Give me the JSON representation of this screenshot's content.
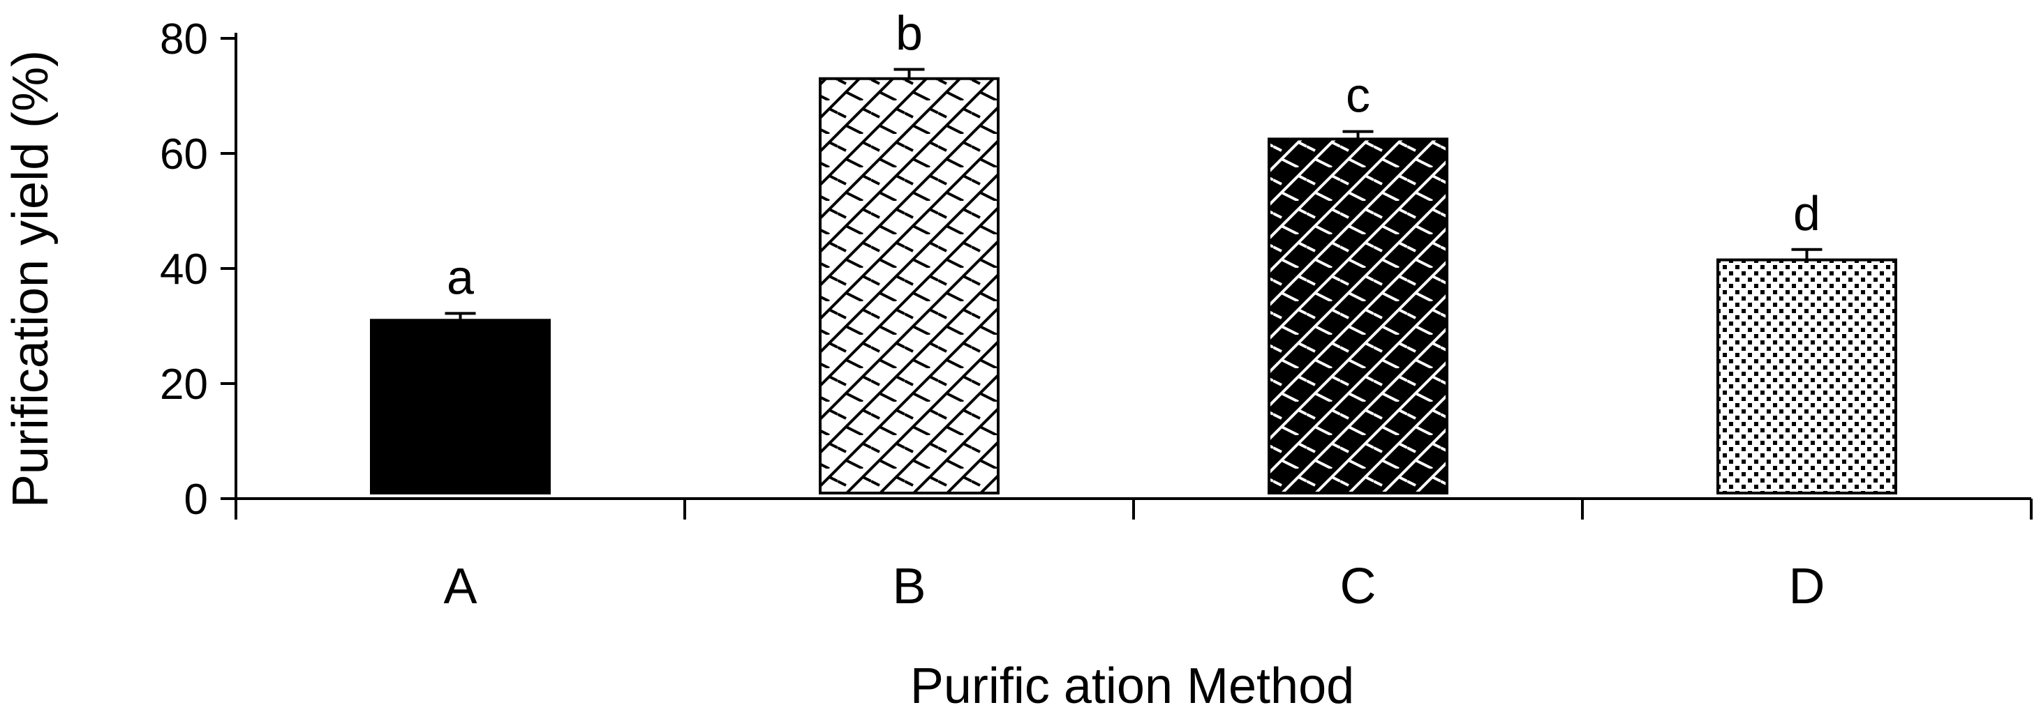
{
  "chart_data": {
    "type": "bar",
    "title": "",
    "xlabel": "Purific ation Method",
    "ylabel": "Purification yield (%)",
    "categories": [
      "A",
      "B",
      "C",
      "D"
    ],
    "values": [
      31,
      73,
      62.5,
      41.5
    ],
    "error": [
      1.2,
      1.6,
      1.3,
      1.8
    ],
    "significance_labels": [
      "a",
      "b",
      "c",
      "d"
    ],
    "ylim": [
      0,
      80
    ],
    "yticks": [
      "0",
      "20",
      "40",
      "60",
      "80"
    ],
    "grid": false,
    "legend": "none",
    "bar_fills": [
      "solid-black",
      "diagonal-brick-white",
      "diagonal-brick-black",
      "dotted-white"
    ],
    "colors": {
      "ink": "#000000",
      "background": "#ffffff"
    }
  }
}
